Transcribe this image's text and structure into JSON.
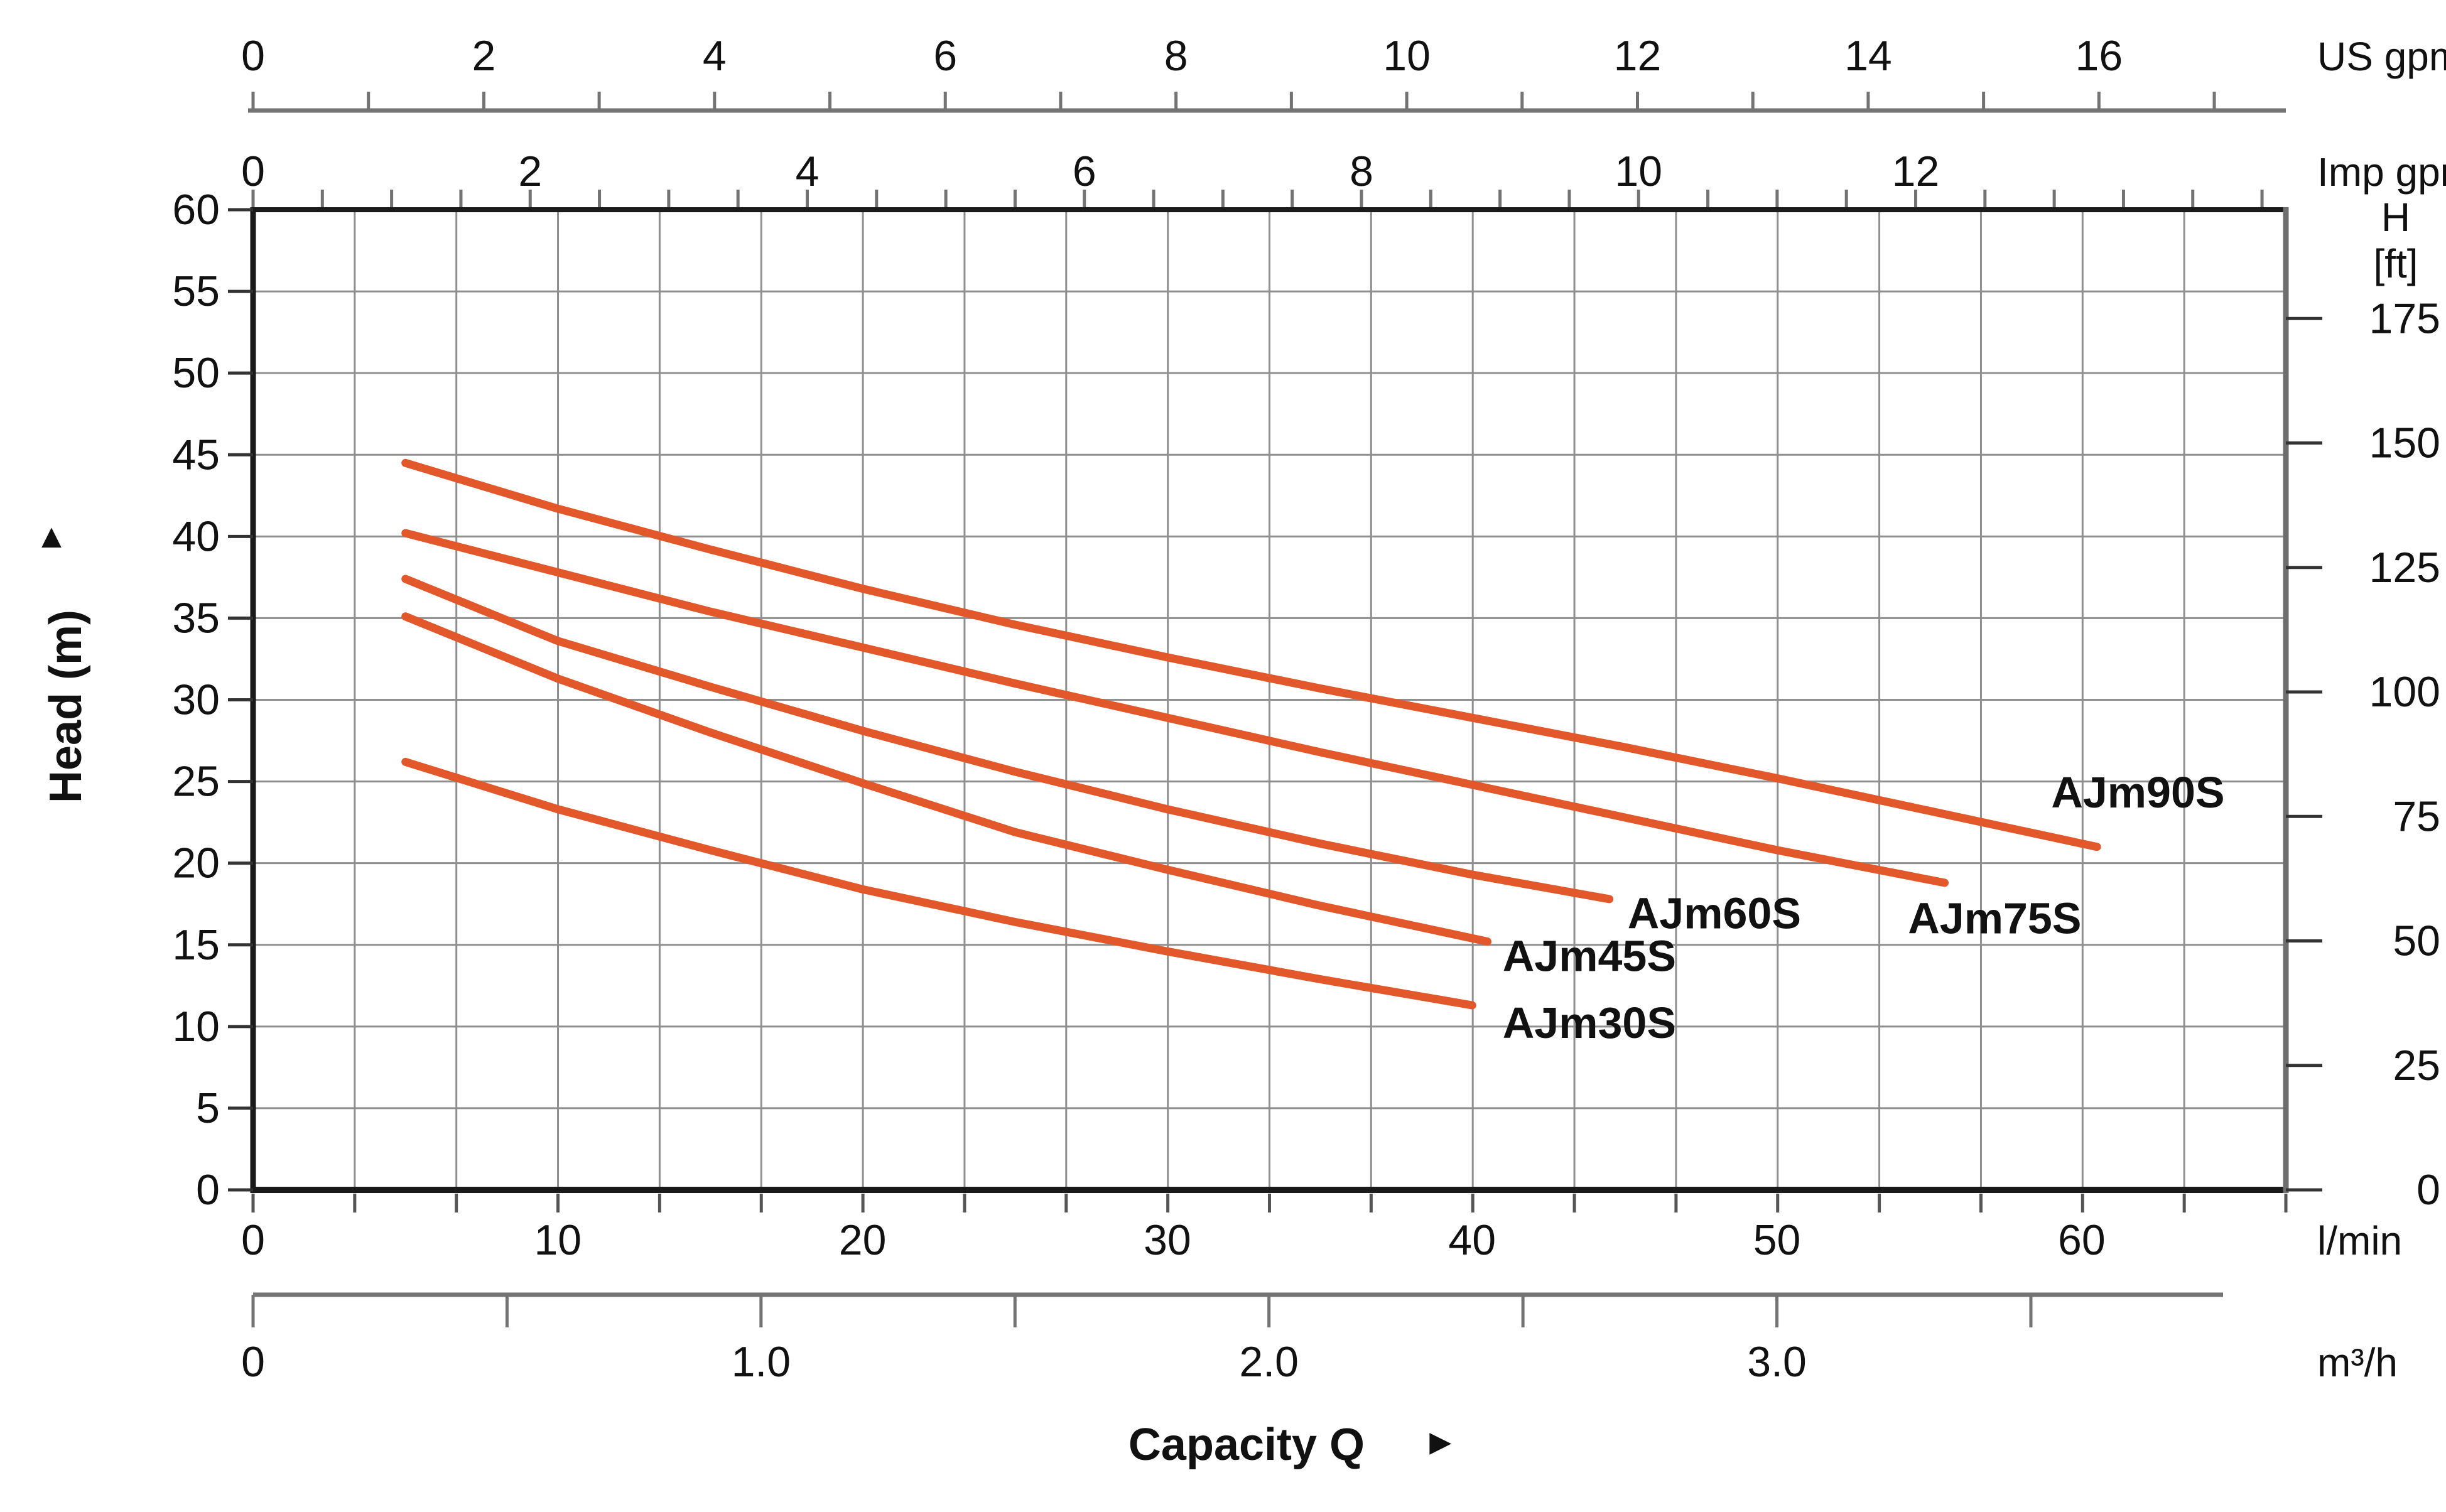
{
  "chart_data": {
    "type": "line",
    "x_label": "Capacity Q",
    "x_label_arrow": "►",
    "y_label": "Head (m)",
    "y_label_arrow": "▲",
    "xlim_lmin": [
      0,
      66.7
    ],
    "ylim_m": [
      0,
      60
    ],
    "grid": {
      "x_divisions": 20,
      "y_divisions": 12,
      "on": true
    },
    "x_axes": [
      {
        "id": "us_gpm",
        "unit": "US gpm",
        "tick_labels": [
          0,
          2,
          4,
          6,
          8,
          10,
          12,
          14,
          16
        ],
        "minor_tick_step": 1,
        "lmin_per_unit": 3.7854,
        "position": "top-outer"
      },
      {
        "id": "imp_gpm",
        "unit": "Imp gpm",
        "tick_labels": [
          0,
          2,
          4,
          6,
          8,
          10,
          12
        ],
        "minor_tick_step": 0.5,
        "lmin_per_unit": 4.5461,
        "position": "top"
      },
      {
        "id": "l_min",
        "unit": "l/min",
        "tick_labels": [
          0,
          10,
          20,
          30,
          40,
          50,
          60
        ],
        "minor_tick_step": 3.3333,
        "lmin_per_unit": 1,
        "position": "bottom"
      },
      {
        "id": "m3_h",
        "unit": "m³/h",
        "tick_labels": [
          "0",
          "1.0",
          "2.0",
          "3.0"
        ],
        "tick_values": [
          0,
          1,
          2,
          3
        ],
        "minor_tick_step": 0.5,
        "lmin_per_unit": 16.6667,
        "position": "bottom-outer"
      }
    ],
    "y_axes": [
      {
        "id": "head_m",
        "label": "Head (m)",
        "tick_labels": [
          0,
          5,
          10,
          15,
          20,
          25,
          30,
          35,
          40,
          45,
          50,
          55,
          60
        ],
        "position": "left"
      },
      {
        "id": "h_ft",
        "label": "H",
        "label2": "[ft]",
        "tick_labels": [
          0,
          25,
          50,
          75,
          100,
          125,
          150,
          175
        ],
        "m_per_unit": 0.3048,
        "position": "right"
      }
    ],
    "series": [
      {
        "name": "AJm90S",
        "points": [
          [
            5,
            44.5
          ],
          [
            10,
            41.7
          ],
          [
            15,
            39.2
          ],
          [
            20,
            36.8
          ],
          [
            25,
            34.6
          ],
          [
            30,
            32.6
          ],
          [
            35,
            30.7
          ],
          [
            40,
            28.9
          ],
          [
            45,
            27.1
          ],
          [
            50,
            25.2
          ],
          [
            55,
            23.2
          ],
          [
            60.5,
            21.0
          ]
        ],
        "label_pos": [
          59.0,
          23.4
        ]
      },
      {
        "name": "AJm75S",
        "points": [
          [
            5,
            40.2
          ],
          [
            10,
            37.8
          ],
          [
            15,
            35.4
          ],
          [
            20,
            33.2
          ],
          [
            25,
            31.0
          ],
          [
            30,
            28.9
          ],
          [
            35,
            26.8
          ],
          [
            40,
            24.8
          ],
          [
            45,
            22.8
          ],
          [
            50,
            20.8
          ],
          [
            55.5,
            18.8
          ]
        ],
        "label_pos": [
          54.3,
          15.7
        ]
      },
      {
        "name": "AJm60S",
        "points": [
          [
            5,
            37.4
          ],
          [
            10,
            33.6
          ],
          [
            15,
            30.8
          ],
          [
            20,
            28.1
          ],
          [
            25,
            25.6
          ],
          [
            30,
            23.3
          ],
          [
            35,
            21.2
          ],
          [
            40,
            19.3
          ],
          [
            44.5,
            17.8
          ]
        ],
        "label_pos": [
          45.1,
          16.0
        ]
      },
      {
        "name": "AJm45S",
        "points": [
          [
            5,
            35.1
          ],
          [
            10,
            31.3
          ],
          [
            15,
            28.0
          ],
          [
            20,
            24.9
          ],
          [
            25,
            21.9
          ],
          [
            30,
            19.6
          ],
          [
            35,
            17.4
          ],
          [
            40.5,
            15.2
          ]
        ],
        "label_pos": [
          41.0,
          13.4
        ]
      },
      {
        "name": "AJm30S",
        "points": [
          [
            5,
            26.2
          ],
          [
            10,
            23.3
          ],
          [
            15,
            20.8
          ],
          [
            20,
            18.4
          ],
          [
            25,
            16.4
          ],
          [
            30,
            14.6
          ],
          [
            35,
            12.9
          ],
          [
            40,
            11.3
          ]
        ],
        "label_pos": [
          41.0,
          9.3
        ]
      }
    ],
    "colors": {
      "curve": "#E2582B",
      "grid": "#8F8F8F",
      "axis_dark": "#1A1A1A",
      "axis_gray": "#737373",
      "text": "#111111"
    }
  }
}
